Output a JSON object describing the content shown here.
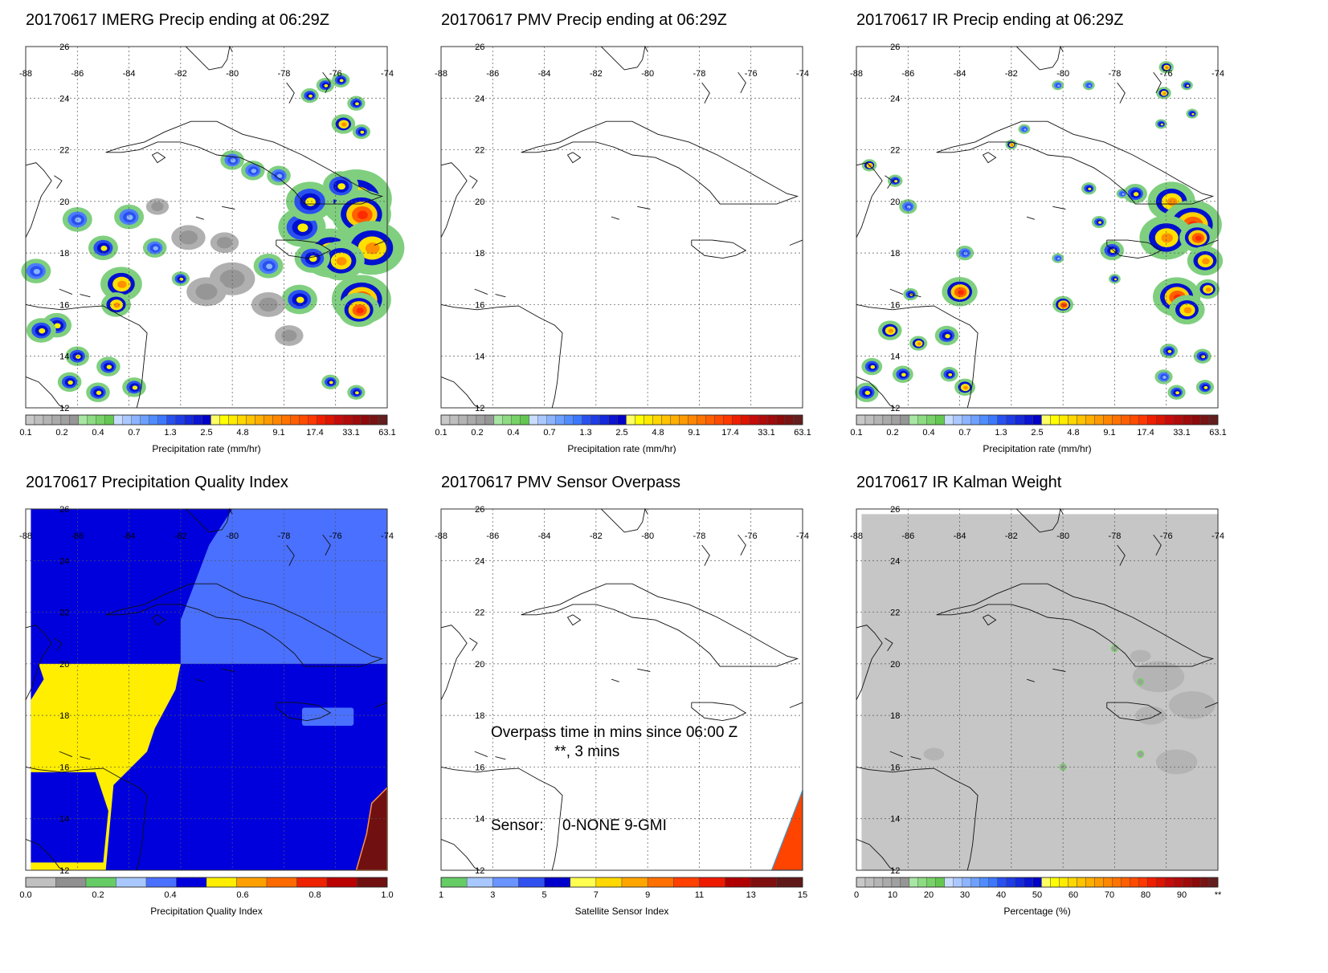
{
  "panels": [
    {
      "title": "20170617 IMERG Precip ending at 06:29Z",
      "colorbar": "precip",
      "content": "imerg"
    },
    {
      "title": "20170617 PMV Precip ending at 06:29Z",
      "colorbar": "precip",
      "content": "empty"
    },
    {
      "title": "20170617 IR Precip ending at 06:29Z",
      "colorbar": "precip",
      "content": "ir"
    },
    {
      "title": "20170617 Precipitation Quality Index",
      "colorbar": "quality",
      "content": "quality"
    },
    {
      "title": "20170617 PMV Sensor Overpass",
      "colorbar": "sensor",
      "content": "overpass"
    },
    {
      "title": "20170617 IR Kalman Weight",
      "colorbar": "kalman",
      "content": "kalman"
    }
  ],
  "map": {
    "lon_labels": [
      "-88",
      "-86",
      "-84",
      "-82",
      "-80",
      "-78",
      "-76",
      "-74"
    ],
    "lat_labels": [
      "26",
      "24",
      "22",
      "20",
      "18",
      "16",
      "14",
      "12"
    ],
    "lon_range": [
      -88,
      -74
    ],
    "lat_range": [
      12,
      26
    ]
  },
  "overpass": {
    "line1": "Overpass time in mins since 06:00 Z",
    "line2": "**, 3 mins",
    "sensor_label": "Sensor:",
    "sensor_values": "0-NONE  9-GMI"
  },
  "colorbars": {
    "precip": {
      "title": "Precipitation rate (mm/hr)",
      "labels": [
        "0.1",
        "0.2",
        "0.4",
        "0.7",
        "1.3",
        "2.5",
        "4.8",
        "9.1",
        "17.4",
        "33.1",
        "63.1"
      ],
      "colors": [
        "#c8c8c8",
        "#bebebe",
        "#b4b4b4",
        "#aaaaaa",
        "#a0a0a0",
        "#969696",
        "#a8e6a3",
        "#8cdc82",
        "#78d268",
        "#64c850",
        "#c8dcff",
        "#aac8ff",
        "#8cb4ff",
        "#6ea0ff",
        "#508cff",
        "#3c78ff",
        "#2850f0",
        "#1e3ce6",
        "#1428dc",
        "#0a14d2",
        "#0000c8",
        "#ffff64",
        "#ffff00",
        "#ffeb00",
        "#ffd700",
        "#ffc300",
        "#ffaf00",
        "#ff9b00",
        "#ff8700",
        "#ff7300",
        "#ff5f00",
        "#ff4b00",
        "#ff3700",
        "#f01e00",
        "#dc1400",
        "#c80a0a",
        "#b40a0a",
        "#a00a0a",
        "#8c0a0a",
        "#781414",
        "#641e1e"
      ]
    },
    "quality": {
      "title": "Precipitation Quality Index",
      "labels": [
        "0.0",
        "0.2",
        "0.4",
        "0.6",
        "0.8",
        "1.0"
      ],
      "colors": [
        "#c0c0c0",
        "#909090",
        "#66cc66",
        "#a8c8ff",
        "#4a70ff",
        "#0000dd",
        "#ffee00",
        "#ffa000",
        "#ff6a00",
        "#ee2200",
        "#bb0000",
        "#701010"
      ]
    },
    "sensor": {
      "title": "Satellite Sensor Index",
      "labels": [
        "1",
        "3",
        "5",
        "7",
        "9",
        "11",
        "13",
        "15"
      ],
      "colors": [
        "#66cc66",
        "#a8c8ff",
        "#6a94ff",
        "#3050f0",
        "#0000cc",
        "#ffff50",
        "#ffd800",
        "#ffa500",
        "#ff7000",
        "#ff4000",
        "#ee1a00",
        "#b00000",
        "#801010",
        "#601818"
      ]
    },
    "kalman": {
      "title": "Percentage (%)",
      "labels": [
        "0",
        "10",
        "20",
        "30",
        "40",
        "50",
        "60",
        "70",
        "80",
        "90",
        "**"
      ],
      "colors": [
        "#c8c8c8",
        "#bebebe",
        "#b4b4b4",
        "#aaaaaa",
        "#a0a0a0",
        "#969696",
        "#a8e6a3",
        "#8cdc82",
        "#78d268",
        "#64c850",
        "#c8dcff",
        "#aac8ff",
        "#8cb4ff",
        "#6ea0ff",
        "#508cff",
        "#3c78ff",
        "#2850f0",
        "#1e3ce6",
        "#1428dc",
        "#0a14d2",
        "#0000c8",
        "#ffff64",
        "#ffff00",
        "#ffeb00",
        "#ffd700",
        "#ffc300",
        "#ffaf00",
        "#ff9b00",
        "#ff8700",
        "#ff7300",
        "#ff5f00",
        "#ff4b00",
        "#ff3700",
        "#f01e00",
        "#dc1400",
        "#c80a0a",
        "#b40a0a",
        "#a00a0a",
        "#8c0a0a",
        "#781414",
        "#641e1e"
      ]
    }
  }
}
